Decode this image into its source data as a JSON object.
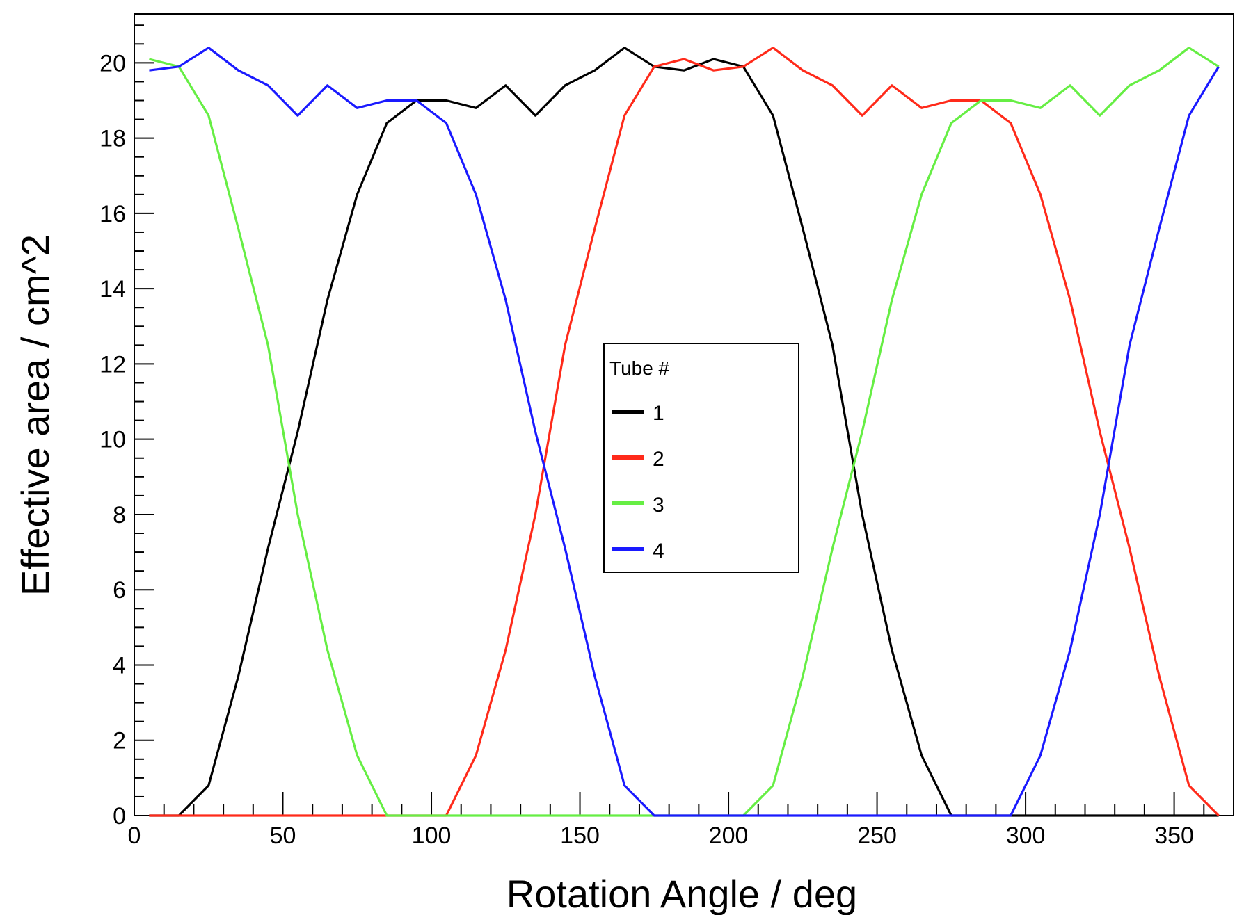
{
  "chart_data": {
    "type": "line",
    "title": "",
    "xlabel": "Rotation Angle / deg",
    "ylabel": "Effective area / cm^2",
    "xlim": [
      0,
      370
    ],
    "ylim": [
      0,
      21.3
    ],
    "xticks": [
      0,
      50,
      100,
      150,
      200,
      250,
      300,
      350
    ],
    "yticks": [
      0,
      2,
      4,
      6,
      8,
      10,
      12,
      14,
      16,
      18,
      20
    ],
    "x_minor_step": 10,
    "y_minor_step": 0.5,
    "grid": false,
    "legend": {
      "title": "Tube #",
      "placement": "center"
    },
    "x": [
      5,
      15,
      25,
      35,
      45,
      55,
      65,
      75,
      85,
      95,
      105,
      115,
      125,
      135,
      145,
      155,
      165,
      175,
      185,
      195,
      205,
      215,
      225,
      235,
      245,
      255,
      265,
      275,
      285,
      295,
      305,
      315,
      325,
      335,
      345,
      355,
      365
    ],
    "series": [
      {
        "name": "1",
        "color": "#000000",
        "values": [
          0,
          0,
          0.8,
          3.7,
          7.1,
          10.2,
          13.7,
          16.5,
          18.4,
          19.0,
          19.0,
          18.8,
          19.4,
          18.6,
          19.4,
          19.8,
          20.4,
          19.9,
          19.8,
          20.1,
          19.9,
          18.6,
          15.6,
          12.5,
          8.0,
          4.4,
          1.6,
          0,
          0,
          0,
          0,
          0,
          0,
          0,
          0,
          0,
          0
        ]
      },
      {
        "name": "2",
        "color": "#ff2a1a",
        "values": [
          0,
          0,
          0,
          0,
          0,
          0,
          0,
          0,
          0,
          0,
          0,
          1.6,
          4.4,
          8.0,
          12.5,
          15.6,
          18.6,
          19.9,
          20.1,
          19.8,
          19.9,
          20.4,
          19.8,
          19.4,
          18.6,
          19.4,
          18.8,
          19.0,
          19.0,
          18.4,
          16.5,
          13.7,
          10.2,
          7.1,
          3.7,
          0.8,
          0
        ]
      },
      {
        "name": "3",
        "color": "#66ee44",
        "values": [
          20.1,
          19.9,
          18.6,
          15.6,
          12.5,
          8.0,
          4.4,
          1.6,
          0,
          0,
          0,
          0,
          0,
          0,
          0,
          0,
          0,
          0,
          0,
          0,
          0,
          0.8,
          3.7,
          7.1,
          10.2,
          13.7,
          16.5,
          18.4,
          19.0,
          19.0,
          18.8,
          19.4,
          18.6,
          19.4,
          19.8,
          20.4,
          19.9
        ]
      },
      {
        "name": "4",
        "color": "#1a1aff",
        "values": [
          19.8,
          19.9,
          20.4,
          19.8,
          19.4,
          18.6,
          19.4,
          18.8,
          19.0,
          19.0,
          18.4,
          16.5,
          13.7,
          10.2,
          7.1,
          3.7,
          0.8,
          0,
          0,
          0,
          0,
          0,
          0,
          0,
          0,
          0,
          0,
          0,
          0,
          0,
          1.6,
          4.4,
          8.0,
          12.5,
          15.6,
          18.6,
          19.9
        ]
      }
    ]
  }
}
